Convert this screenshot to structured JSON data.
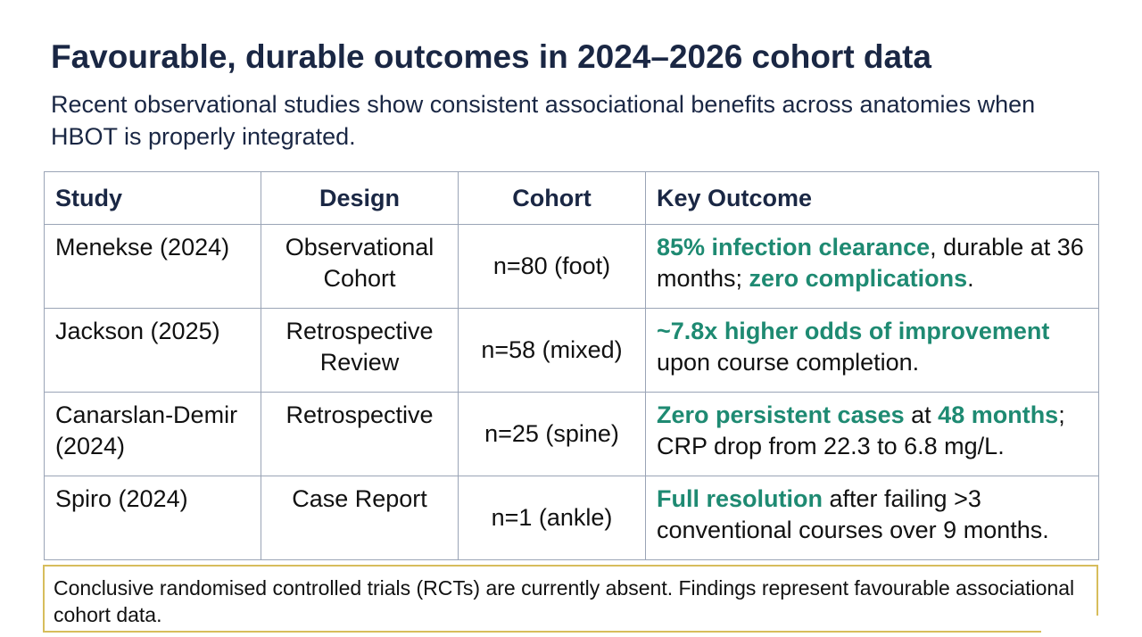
{
  "title": "Favourable, durable outcomes in 2024–2026 cohort data",
  "subtitle": "Recent observational studies show consistent associational benefits across anatomies when HBOT is properly integrated.",
  "table": {
    "headers": {
      "study": "Study",
      "design": "Design",
      "cohort": "Cohort",
      "outcome": "Key Outcome"
    },
    "rows": [
      {
        "study": "Menekse (2024)",
        "design": "Observational Cohort",
        "cohort": "n=80 (foot)",
        "outcome": [
          {
            "text": "85% infection clearance",
            "highlight": true
          },
          {
            "text": ", durable at 36 months; ",
            "highlight": false
          },
          {
            "text": "zero complications",
            "highlight": true
          },
          {
            "text": ".",
            "highlight": false
          }
        ]
      },
      {
        "study": "Jackson (2025)",
        "design": "Retrospective Review",
        "cohort": "n=58 (mixed)",
        "outcome": [
          {
            "text": "~7.8x higher odds of improvement",
            "highlight": true
          },
          {
            "text": " upon course completion.",
            "highlight": false
          }
        ]
      },
      {
        "study": "Canarslan-Demir (2024)",
        "design": "Retrospective",
        "cohort": "n=25 (spine)",
        "outcome": [
          {
            "text": "Zero persistent cases",
            "highlight": true
          },
          {
            "text": " at ",
            "highlight": false
          },
          {
            "text": "48 months",
            "highlight": true
          },
          {
            "text": "; CRP drop from 22.3 to 6.8 mg/L.",
            "highlight": false
          }
        ]
      },
      {
        "study": "Spiro (2024)",
        "design": "Case Report",
        "cohort": "n=1 (ankle)",
        "outcome": [
          {
            "text": "Full resolution",
            "highlight": true
          },
          {
            "text": " after failing >3 conventional courses over 9 months.",
            "highlight": false
          }
        ]
      }
    ]
  },
  "note": "Conclusive randomised controlled trials (RCTs) are currently absent. Findings represent favourable associational cohort data.",
  "colors": {
    "heading": "#1a2744",
    "highlight": "#1e8a72",
    "table_border": "#9aa4b6",
    "note_border": "#d7bd5c"
  }
}
